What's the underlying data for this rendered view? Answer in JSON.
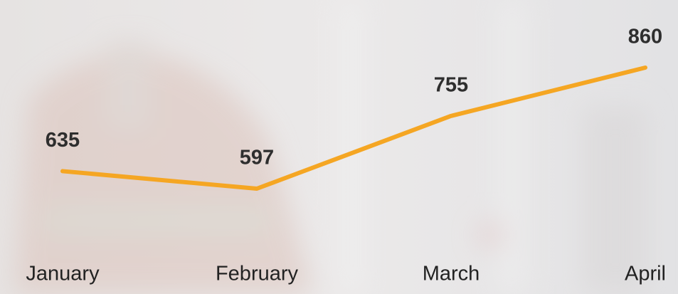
{
  "chart_data": {
    "type": "line",
    "categories": [
      "January",
      "February",
      "March",
      "April"
    ],
    "values": [
      635,
      597,
      755,
      860
    ],
    "color": "#f5a623"
  }
}
